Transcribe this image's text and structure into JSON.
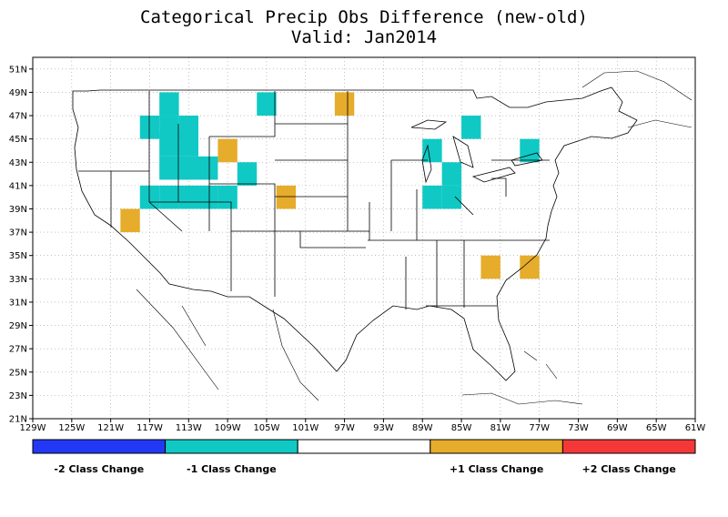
{
  "title": "Categorical Precip Obs Difference (new-old)",
  "subtitle": "Valid: Jan2014",
  "colors": {
    "minus2": "#2338f4",
    "minus1": "#10c9c4",
    "zero": "#ffffff",
    "plus1": "#e6ac2b",
    "plus2": "#f43838",
    "grid": "#9a9a9a",
    "outline": "#000000"
  },
  "map": {
    "lon_range": [
      -129,
      -61
    ],
    "lat_range": [
      21,
      52
    ],
    "lon_ticks": [
      "129W",
      "125W",
      "121W",
      "117W",
      "113W",
      "109W",
      "105W",
      "101W",
      "97W",
      "93W",
      "89W",
      "85W",
      "81W",
      "77W",
      "73W",
      "69W",
      "65W",
      "61W"
    ],
    "lat_ticks": [
      "21N",
      "23N",
      "25N",
      "27N",
      "29N",
      "31N",
      "33N",
      "35N",
      "37N",
      "39N",
      "41N",
      "43N",
      "45N",
      "47N",
      "49N",
      "51N"
    ],
    "cells": [
      {
        "lon": -115,
        "lat": 48.0,
        "cat": "minus1"
      },
      {
        "lon": -105,
        "lat": 48.0,
        "cat": "minus1"
      },
      {
        "lon": -97,
        "lat": 48.0,
        "cat": "plus1"
      },
      {
        "lon": -117,
        "lat": 46.0,
        "cat": "minus1"
      },
      {
        "lon": -115,
        "lat": 46.0,
        "cat": "minus1"
      },
      {
        "lon": -113,
        "lat": 46.0,
        "cat": "minus1"
      },
      {
        "lon": -115,
        "lat": 44.5,
        "cat": "minus1"
      },
      {
        "lon": -113,
        "lat": 44.5,
        "cat": "minus1"
      },
      {
        "lon": -109,
        "lat": 44.0,
        "cat": "plus1"
      },
      {
        "lon": -115,
        "lat": 42.5,
        "cat": "minus1"
      },
      {
        "lon": -113,
        "lat": 42.5,
        "cat": "minus1"
      },
      {
        "lon": -111,
        "lat": 42.5,
        "cat": "minus1"
      },
      {
        "lon": -107,
        "lat": 42.0,
        "cat": "minus1"
      },
      {
        "lon": -117,
        "lat": 40.0,
        "cat": "minus1"
      },
      {
        "lon": -115,
        "lat": 40.0,
        "cat": "minus1"
      },
      {
        "lon": -113,
        "lat": 40.0,
        "cat": "minus1"
      },
      {
        "lon": -111,
        "lat": 40.0,
        "cat": "minus1"
      },
      {
        "lon": -109,
        "lat": 40.0,
        "cat": "minus1"
      },
      {
        "lon": -103,
        "lat": 40.0,
        "cat": "plus1"
      },
      {
        "lon": -119,
        "lat": 38.0,
        "cat": "plus1"
      },
      {
        "lon": -88,
        "lat": 44.0,
        "cat": "minus1"
      },
      {
        "lon": -86,
        "lat": 42.0,
        "cat": "minus1"
      },
      {
        "lon": -88,
        "lat": 40.0,
        "cat": "minus1"
      },
      {
        "lon": -86,
        "lat": 40.0,
        "cat": "minus1"
      },
      {
        "lon": -84,
        "lat": 46.0,
        "cat": "minus1"
      },
      {
        "lon": -78,
        "lat": 44.0,
        "cat": "minus1"
      },
      {
        "lon": -82,
        "lat": 34.0,
        "cat": "plus1"
      },
      {
        "lon": -78,
        "lat": 34.0,
        "cat": "plus1"
      }
    ]
  },
  "legend": {
    "items": [
      {
        "key": "minus2",
        "label": "-2 Class Change"
      },
      {
        "key": "minus1",
        "label": "-1 Class Change"
      },
      {
        "key": "zero",
        "label": ""
      },
      {
        "key": "plus1",
        "label": "+1 Class Change"
      },
      {
        "key": "plus2",
        "label": "+2 Class Change"
      }
    ]
  }
}
